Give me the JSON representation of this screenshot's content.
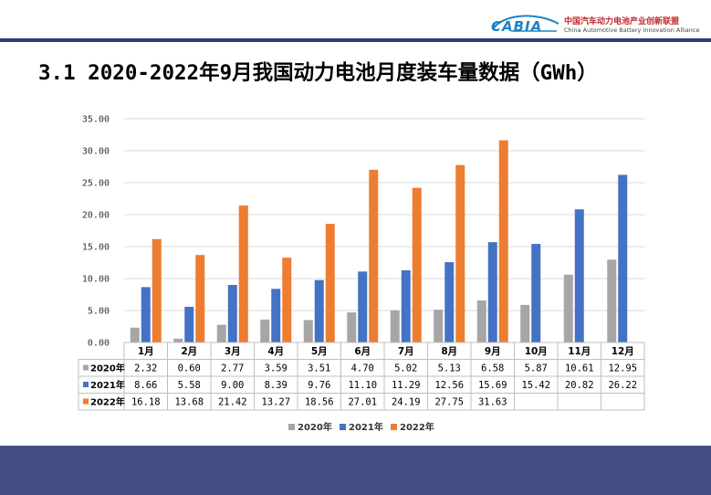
{
  "header": {
    "logo_mark": "CABIA",
    "org_name_cn": "中国汽车动力电池产业创新联盟",
    "org_name_en": "China Automotive Battery Innovation Alliance"
  },
  "slide_title": "3.1 2020-2022年9月我国动力电池月度装车量数据（GWh）",
  "colors": {
    "accent": "#2a3f7a",
    "footer": "#434f82",
    "s2020": "#a6a6a6",
    "s2021": "#4472c4",
    "s2022": "#ed7d31"
  },
  "chart_data": {
    "type": "bar",
    "title": "",
    "xlabel": "",
    "ylabel": "",
    "ylim": [
      0,
      35
    ],
    "y_ticks": [
      "0.00",
      "5.00",
      "10.00",
      "15.00",
      "20.00",
      "25.00",
      "30.00",
      "35.00"
    ],
    "grid": true,
    "legend_position": "bottom",
    "categories": [
      "1月",
      "2月",
      "3月",
      "4月",
      "5月",
      "6月",
      "7月",
      "8月",
      "9月",
      "10月",
      "11月",
      "12月"
    ],
    "series": [
      {
        "name": "2020年",
        "color": "#a6a6a6",
        "values": [
          2.32,
          0.6,
          2.77,
          3.59,
          3.51,
          4.7,
          5.02,
          5.13,
          6.58,
          5.87,
          10.61,
          12.95
        ],
        "labels": [
          "2.32",
          "0.60",
          "2.77",
          "3.59",
          "3.51",
          "4.70",
          "5.02",
          "5.13",
          "6.58",
          "5.87",
          "10.61",
          "12.95"
        ]
      },
      {
        "name": "2021年",
        "color": "#4472c4",
        "values": [
          8.66,
          5.58,
          9.0,
          8.39,
          9.76,
          11.1,
          11.29,
          12.56,
          15.69,
          15.42,
          20.82,
          26.22
        ],
        "labels": [
          "8.66",
          "5.58",
          "9.00",
          "8.39",
          "9.76",
          "11.10",
          "11.29",
          "12.56",
          "15.69",
          "15.42",
          "20.82",
          "26.22"
        ]
      },
      {
        "name": "2022年",
        "color": "#ed7d31",
        "values": [
          16.18,
          13.68,
          21.42,
          13.27,
          18.56,
          27.01,
          24.19,
          27.75,
          31.63,
          null,
          null,
          null
        ],
        "labels": [
          "16.18",
          "13.68",
          "21.42",
          "13.27",
          "18.56",
          "27.01",
          "24.19",
          "27.75",
          "31.63",
          "",
          "",
          ""
        ]
      }
    ]
  }
}
